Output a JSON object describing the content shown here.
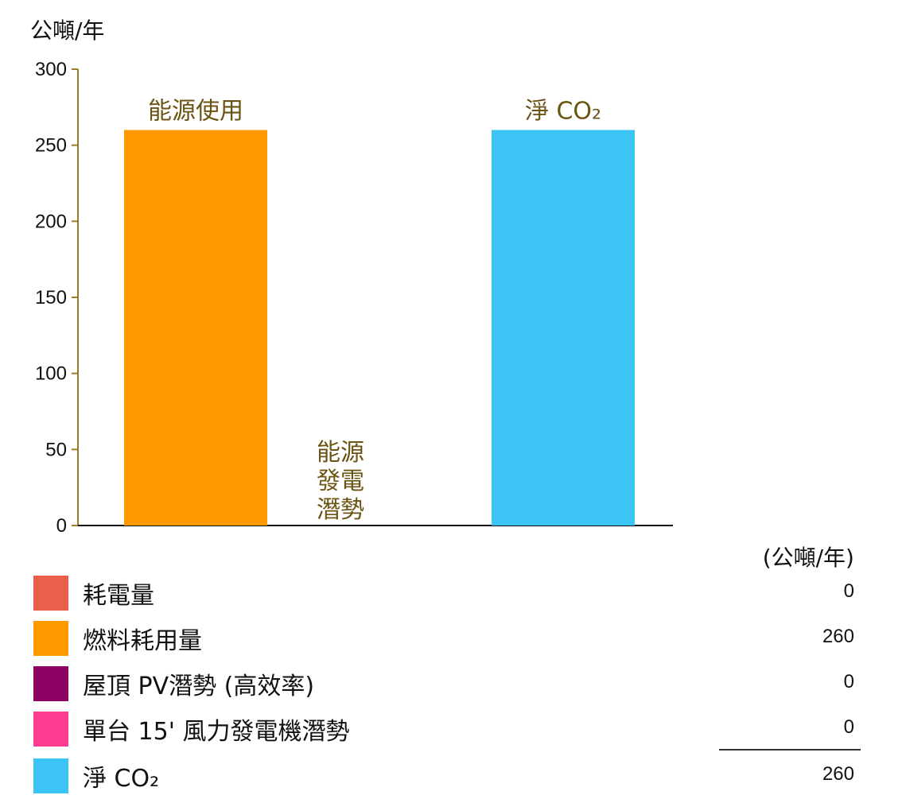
{
  "chart_data": {
    "type": "bar",
    "ylabel": "公噸/年",
    "ylim": [
      0,
      300
    ],
    "yticks": [
      0,
      50,
      100,
      150,
      200,
      250,
      300
    ],
    "categories": [
      "能源使用",
      "能源發電潛勢",
      "淨 CO₂"
    ],
    "category_label_lines": [
      [
        "能源使用"
      ],
      [
        "能源",
        "發電",
        "潛勢"
      ],
      [
        "淨 CO₂"
      ]
    ],
    "values": [
      260,
      0,
      260
    ],
    "colors": [
      "#ff9900",
      "#ffffff",
      "#3cc5f4"
    ],
    "axis_color": "#9a7b2c",
    "label_color": "#6b5312",
    "legend_placement": "bottom"
  },
  "legend": {
    "unit": "(公噸/年)",
    "items": [
      {
        "label": "耗電量",
        "color": "#e8604c",
        "value": "0"
      },
      {
        "label": "燃料耗用量",
        "color": "#ff9900",
        "value": "260"
      },
      {
        "label": "屋頂 PV潛勢 (高效率)",
        "color": "#8b0060",
        "value": "0"
      },
      {
        "label": "單台 15' 風力發電機潛勢",
        "color": "#ff3b8f",
        "value": "0"
      },
      {
        "label": "淨 CO₂",
        "color": "#3cc5f4",
        "value": "260"
      }
    ]
  }
}
